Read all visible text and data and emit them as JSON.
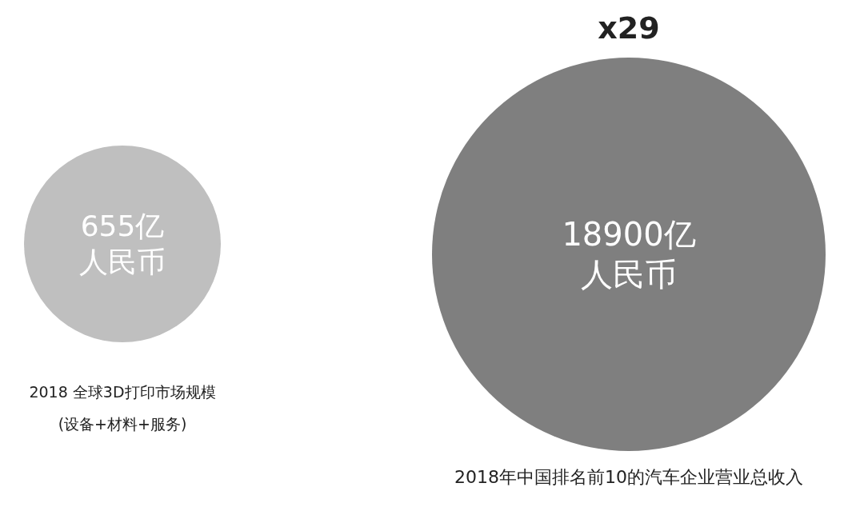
{
  "chart_data": {
    "type": "other",
    "categories": [
      "2018 全球3D打印市场规模\n(设备+材料+服务)",
      "2018年中国排名前10的汽车企业营业总收入"
    ],
    "values": [
      655,
      18900
    ],
    "value_labels": [
      "655亿人民币",
      "18900亿人民币"
    ],
    "colors": [
      "#bfbfbf",
      "#7f7f7f"
    ],
    "annotations": [
      "x29"
    ]
  }
}
